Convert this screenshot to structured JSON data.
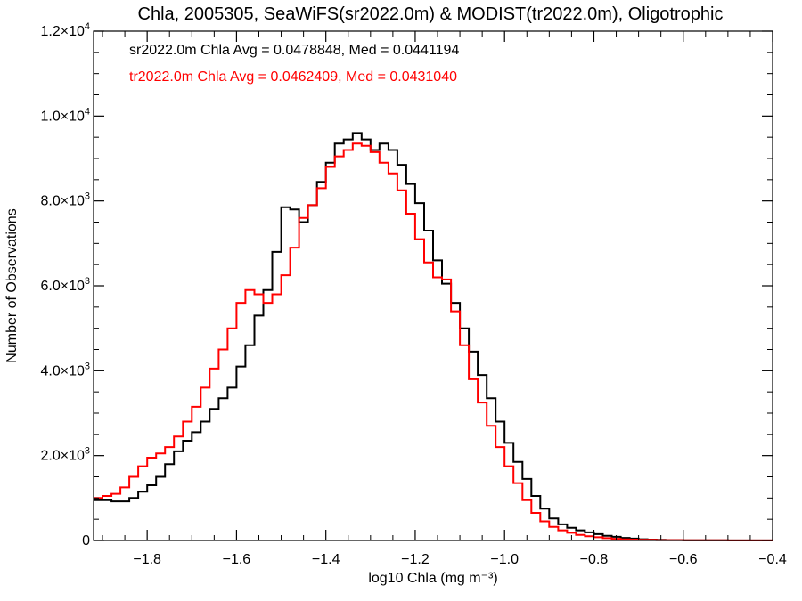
{
  "colors": {
    "series_sr": "#000000",
    "series_tr": "#ff0000",
    "axis": "#000000"
  },
  "chart_data": {
    "type": "line",
    "step": true,
    "title": "Chla, 2005305, SeaWiFS(sr2022.0m) & MODIST(tr2022.0m), Oligotrophic",
    "xlabel": "log10 Chla (mg m⁻³)",
    "ylabel": "Number of Observations",
    "xlim": [
      -1.92,
      -0.4
    ],
    "ylim": [
      0,
      12000
    ],
    "xticks": [
      -1.8,
      -1.6,
      -1.4,
      -1.2,
      -1.0,
      -0.8,
      -0.6,
      -0.4
    ],
    "xtick_labels": [
      "−1.8",
      "−1.6",
      "−1.4",
      "−1.2",
      "−1.0",
      "−0.8",
      "−0.6",
      "−0.4"
    ],
    "yticks": [
      0,
      2000,
      4000,
      6000,
      8000,
      10000,
      12000
    ],
    "ytick_labels": [
      {
        "mant": "0",
        "exp": ""
      },
      {
        "mant": "2.0×10",
        "exp": "3"
      },
      {
        "mant": "4.0×10",
        "exp": "3"
      },
      {
        "mant": "6.0×10",
        "exp": "3"
      },
      {
        "mant": "8.0×10",
        "exp": "3"
      },
      {
        "mant": "1.0×10",
        "exp": "4"
      },
      {
        "mant": "1.2×10",
        "exp": "4"
      }
    ],
    "annotations": [
      "sr2022.0m Chla Avg = 0.0478848, Med = 0.0441194",
      "tr2022.0m Chla Avg = 0.0462409, Med = 0.0431040"
    ],
    "series": [
      {
        "key": "sr",
        "color": "#000000",
        "points": [
          [
            -1.92,
            950
          ],
          [
            -1.88,
            920
          ],
          [
            -1.86,
            920
          ],
          [
            -1.84,
            1000
          ],
          [
            -1.82,
            1150
          ],
          [
            -1.8,
            1300
          ],
          [
            -1.78,
            1500
          ],
          [
            -1.76,
            1800
          ],
          [
            -1.74,
            2100
          ],
          [
            -1.72,
            2350
          ],
          [
            -1.7,
            2550
          ],
          [
            -1.68,
            2800
          ],
          [
            -1.66,
            3100
          ],
          [
            -1.64,
            3350
          ],
          [
            -1.62,
            3600
          ],
          [
            -1.6,
            4100
          ],
          [
            -1.58,
            4600
          ],
          [
            -1.56,
            5300
          ],
          [
            -1.54,
            5900
          ],
          [
            -1.52,
            6800
          ],
          [
            -1.5,
            7850
          ],
          [
            -1.48,
            7800
          ],
          [
            -1.46,
            7500
          ],
          [
            -1.44,
            7900
          ],
          [
            -1.42,
            8450
          ],
          [
            -1.4,
            8900
          ],
          [
            -1.38,
            9350
          ],
          [
            -1.36,
            9450
          ],
          [
            -1.34,
            9600
          ],
          [
            -1.32,
            9450
          ],
          [
            -1.3,
            9200
          ],
          [
            -1.28,
            9350
          ],
          [
            -1.26,
            9200
          ],
          [
            -1.24,
            8850
          ],
          [
            -1.22,
            8400
          ],
          [
            -1.2,
            7950
          ],
          [
            -1.18,
            7300
          ],
          [
            -1.16,
            6600
          ],
          [
            -1.14,
            6050
          ],
          [
            -1.12,
            5600
          ],
          [
            -1.1,
            5000
          ],
          [
            -1.08,
            4450
          ],
          [
            -1.06,
            3900
          ],
          [
            -1.04,
            3350
          ],
          [
            -1.02,
            2800
          ],
          [
            -1.0,
            2300
          ],
          [
            -0.98,
            1850
          ],
          [
            -0.96,
            1450
          ],
          [
            -0.94,
            1050
          ],
          [
            -0.92,
            750
          ],
          [
            -0.9,
            520
          ],
          [
            -0.88,
            380
          ],
          [
            -0.86,
            300
          ],
          [
            -0.84,
            240
          ],
          [
            -0.82,
            190
          ],
          [
            -0.8,
            150
          ],
          [
            -0.78,
            110
          ],
          [
            -0.76,
            85
          ],
          [
            -0.74,
            60
          ],
          [
            -0.72,
            45
          ],
          [
            -0.7,
            30
          ],
          [
            -0.68,
            22
          ],
          [
            -0.66,
            15
          ],
          [
            -0.64,
            10
          ],
          [
            -0.6,
            5
          ],
          [
            -0.5,
            2
          ],
          [
            -0.4,
            0
          ]
        ]
      },
      {
        "key": "tr",
        "color": "#ff0000",
        "points": [
          [
            -1.92,
            1000
          ],
          [
            -1.9,
            1050
          ],
          [
            -1.88,
            1100
          ],
          [
            -1.86,
            1250
          ],
          [
            -1.84,
            1500
          ],
          [
            -1.82,
            1750
          ],
          [
            -1.8,
            1950
          ],
          [
            -1.78,
            2050
          ],
          [
            -1.76,
            2200
          ],
          [
            -1.74,
            2450
          ],
          [
            -1.72,
            2800
          ],
          [
            -1.7,
            3150
          ],
          [
            -1.68,
            3600
          ],
          [
            -1.66,
            4050
          ],
          [
            -1.64,
            4500
          ],
          [
            -1.62,
            5000
          ],
          [
            -1.6,
            5600
          ],
          [
            -1.58,
            5900
          ],
          [
            -1.56,
            5800
          ],
          [
            -1.54,
            5600
          ],
          [
            -1.52,
            5800
          ],
          [
            -1.5,
            6250
          ],
          [
            -1.48,
            6900
          ],
          [
            -1.46,
            7600
          ],
          [
            -1.44,
            7900
          ],
          [
            -1.42,
            8300
          ],
          [
            -1.4,
            8800
          ],
          [
            -1.38,
            9050
          ],
          [
            -1.36,
            9200
          ],
          [
            -1.34,
            9350
          ],
          [
            -1.32,
            9300
          ],
          [
            -1.3,
            9150
          ],
          [
            -1.28,
            8900
          ],
          [
            -1.26,
            8650
          ],
          [
            -1.24,
            8250
          ],
          [
            -1.22,
            7700
          ],
          [
            -1.2,
            7100
          ],
          [
            -1.18,
            6550
          ],
          [
            -1.16,
            6200
          ],
          [
            -1.14,
            6150
          ],
          [
            -1.12,
            5400
          ],
          [
            -1.1,
            4600
          ],
          [
            -1.08,
            3800
          ],
          [
            -1.06,
            3250
          ],
          [
            -1.04,
            2700
          ],
          [
            -1.02,
            2200
          ],
          [
            -1.0,
            1750
          ],
          [
            -0.98,
            1350
          ],
          [
            -0.96,
            950
          ],
          [
            -0.94,
            650
          ],
          [
            -0.92,
            450
          ],
          [
            -0.9,
            320
          ],
          [
            -0.88,
            240
          ],
          [
            -0.86,
            180
          ],
          [
            -0.84,
            130
          ],
          [
            -0.82,
            100
          ],
          [
            -0.8,
            75
          ],
          [
            -0.78,
            55
          ],
          [
            -0.76,
            40
          ],
          [
            -0.74,
            28
          ],
          [
            -0.72,
            20
          ],
          [
            -0.7,
            14
          ],
          [
            -0.66,
            8
          ],
          [
            -0.6,
            4
          ],
          [
            -0.5,
            2
          ],
          [
            -0.4,
            0
          ]
        ]
      }
    ]
  }
}
